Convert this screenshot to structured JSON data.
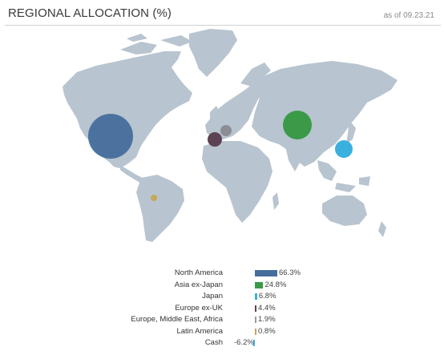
{
  "header": {
    "title": "REGIONAL ALLOCATION (%)",
    "as_of": "as of 09.23.21"
  },
  "colors": {
    "land": "#b8c4cf",
    "north_america": "#456e9c",
    "asia_ex_japan": "#3a9a48",
    "japan": "#3ab0de",
    "europe_ex_uk": "#5c4252",
    "emea": "#9a9aa6",
    "latin_america": "#c6a85a",
    "cash": "#3ab0de"
  },
  "chart_data": {
    "type": "bar",
    "categories": [
      "North America",
      "Asia ex-Japan",
      "Japan",
      "Europe ex-UK",
      "Europe, Middle East, Africa",
      "Latin America",
      "Cash"
    ],
    "values": [
      66.3,
      24.8,
      6.8,
      4.4,
      1.9,
      0.8,
      -6.2
    ],
    "value_labels": [
      "66.3%",
      "24.8%",
      "6.8%",
      "4.4%",
      "1.9%",
      "0.8%",
      "-6.2%"
    ],
    "title": "REGIONAL ALLOCATION (%)",
    "xlabel": "",
    "ylabel": ""
  }
}
